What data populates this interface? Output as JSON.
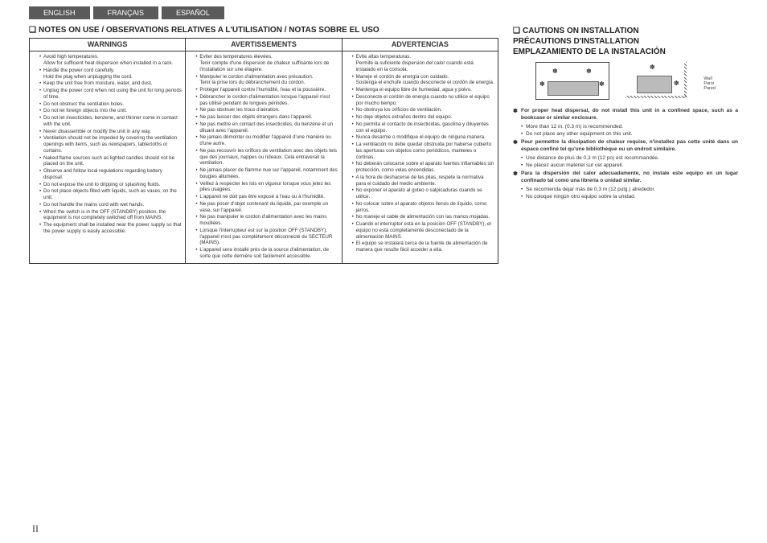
{
  "tabs": {
    "en": "ENGLISH",
    "fr": "FRANÇAIS",
    "es": "ESPAÑOL"
  },
  "notesTitle": "NOTES ON USE / OBSERVATIONS RELATIVES A L'UTILISATION / NOTAS SOBRE EL USO",
  "headers": {
    "en": "WARNINGS",
    "fr": "AVERTISSEMENTS",
    "es": "ADVERTENCIAS"
  },
  "warnings_en": [
    "Avoid high temperatures.<span class=\"sub\">Allow for sufficient heat dispersion when installed in a rack.</span>",
    "Handle the power cord carefully.<span class=\"sub\">Hold the plug when unplugging the cord.</span>",
    "Keep the unit free from moisture, water, and dust.",
    "Unplug the power cord when not using the unit for long periods of time.",
    "Do not obstruct the ventilation holes.",
    "Do not let foreign objects into the unit.",
    "Do not let insecticides, benzene, and thinner come in contact with the unit.",
    "Never disassemble or modify the unit in any way.",
    "Ventilation should not be impeded by covering the ventilation openings with items, such as newspapers, tablecloths or curtains.",
    "Naked flame sources such as lighted candles should not be placed on the unit.",
    "Observe and follow local regulations regarding battery disposal.",
    "Do not expose the unit to dripping or splashing fluids.",
    "Do not place objects filled with liquids, such as vases, on the unit.",
    "Do not handle the mains cord with wet hands.",
    "When the switch is in the OFF (STANDBY) position, the equipment is not completely switched off from MAINS.",
    "The equipment shall be installed near the power supply so that the power supply is easily accessible."
  ],
  "warnings_fr": [
    "Eviter des températures élevées.<span class=\"sub\">Tenir compte d'une dispersion de chaleur suffisante lors de l'installation sur une étagère.</span>",
    "Manipuler le cordon d'alimentation avec précaution.<span class=\"sub\">Tenir la prise lors du débranchement du cordon.</span>",
    "Protéger l'appareil contre l'humidité, l'eau et la poussière.",
    "Débrancher le cordon d'alimentation lorsque l'appareil n'est pas utilisé pendant de longues périodes.",
    "Ne pas obstruer les trous d'aération.",
    "Ne pas laisser des objets étrangers dans l'appareil.",
    "Ne pas mettre en contact des insecticides, du benzène et un diluant avec l'appareil.",
    "Ne jamais démonter ou modifier l'appareil d'une manière ou d'une autre.",
    "Ne pas recouvrir les orifices de ventilation avec des objets tels que des journaux, nappes ou rideaux. Cela entraverait la ventilation.",
    "Ne jamais placer de flamme nue sur l'appareil, notamment des bougies allumées.",
    "Veillez à respecter les lois en vigueur lorsque vous jetez les piles usagées.",
    "L'appareil ne doit pas être exposé à l'eau ou à l'humidité.",
    "Ne pas poser d'objet contenant du liquide, par exemple un vase, sur l'appareil.",
    "Ne pas manipuler le cordon d'alimentation avec les mains mouillées.",
    "Lorsque l'interrupteur est sur la position OFF (STANDBY), l'appareil n'est pas complètement déconnecté du SECTEUR (MAINS).",
    "L'appareil sera installé près de la source d'alimentation, de sorte que cette dernière soit facilement accessible."
  ],
  "warnings_es": [
    "Evite altas temperaturas.<span class=\"sub\">Permite la suficiente dispersión del calor cuando está instalado en la consola.</span>",
    "Maneje el cordón de energía con cuidado.<span class=\"sub\">Sostenga el enchufe cuando desconecte el cordón de energía.</span>",
    "Mantenga el equipo libre de humedad, agua y polvo.",
    "Desconecte el cordón de energía cuando no utilice el equipo por mucho tiempo.",
    "No obstruya los orificios de ventilación.",
    "No deje objetos extraños dentro del equipo.",
    "No permita el contacto de insecticidas, gasolina y diluyentes con el equipo.",
    "Nunca desarme o modifique el equipo de ninguna manera.",
    "La ventilación no debe quedar obstruida por haberse cubierto las aperturas con objetos como periódicos, manteles o cortinas.",
    "No deberán colocarse sobre el aparato fuentes inflamables sin protección, como velas encendidas.",
    "A la hora de deshacerse de las pilas, respete la normativa para el cuidado del medio ambiente.",
    "No exponer el aparato al goteo o salpicaduras cuando se utilice.",
    "No colocar sobre el aparato objetos llenos de líquido, como jarros.",
    "No maneje el cable de alimentación con las manos mojadas.",
    "Cuando el interruptor está en la posición OFF (STANDBY), el equipo no está completamente desconectado de la alimentación MAINS.",
    "El equipo se instalará cerca de la fuente de alimentación de manera que resulte fácil acceder a ella."
  ],
  "cautionsTitle": "CAUTIONS ON INSTALLATION<br>PRÉCAUTIONS D'INSTALLATION<br>EMPLAZAMIENTO DE LA INSTALACIÓN",
  "wallLabel": "Wall<br>Paroi<br>Pared",
  "cautions": [
    {
      "bold": true,
      "text": "For proper heat dispersal, do not install this unit in a confined space, such as a bookcase or similar enclosure."
    },
    {
      "sub": true,
      "text": "More than 12 in. (0.3 m) is recommended."
    },
    {
      "sub": true,
      "text": "Do not place any other equipment on this unit."
    },
    {
      "bold": true,
      "text": "Pour permettre la dissipation de chaleur requise, n'installez pas cette unité dans un espace confiné tel qu'une bibliothèque ou un endroit similaire."
    },
    {
      "sub": true,
      "text": "Une distance de plus de 0,3 m (12 po) est recommandée."
    },
    {
      "sub": true,
      "text": "Ne placez aucun matériel sur cet appareil."
    },
    {
      "bold": true,
      "text": "Para la dispersión del calor adecuadamente, no instale este equipo en un lugar confinado tal como una librería o unidad similar."
    },
    {
      "sub": true,
      "text": "Se recomienda dejar más de 0,3 m (12 pulg.) alrededor."
    },
    {
      "sub": true,
      "text": "No coloque ningún otro equipo sobre la unidad."
    }
  ],
  "pageNum": "II"
}
